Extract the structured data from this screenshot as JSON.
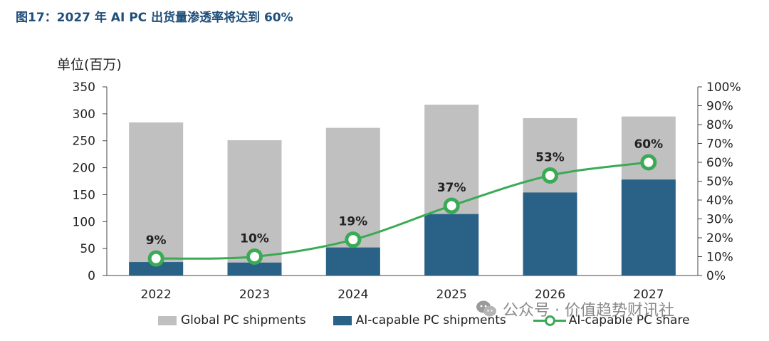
{
  "title": "图17：2027 年 AI PC 出货量渗透率将达到 60%",
  "unit_label": "单位(百万)",
  "watermark": "公众号 · 价值趋势财讯社",
  "colors": {
    "global": "#c0c0c0",
    "ai": "#2a6187",
    "share": "#3aaa55",
    "title": "#1f4e79"
  },
  "chart_data": {
    "type": "bar",
    "categories": [
      "2022",
      "2023",
      "2024",
      "2025",
      "2026",
      "2027"
    ],
    "series": [
      {
        "name": "Global PC shipments",
        "type": "bar",
        "axis": "left",
        "values": [
          284,
          251,
          274,
          317,
          292,
          295
        ]
      },
      {
        "name": "AI-capable PC shipments",
        "type": "bar",
        "axis": "left",
        "values": [
          25,
          24,
          52,
          114,
          154,
          178
        ]
      },
      {
        "name": "AI-capable PC share",
        "type": "line",
        "axis": "right",
        "values": [
          9,
          10,
          19,
          37,
          53,
          60
        ],
        "labels": [
          "9%",
          "10%",
          "19%",
          "37%",
          "53%",
          "60%"
        ]
      }
    ],
    "y_left": {
      "ylim": [
        0,
        350
      ],
      "ticks": [
        0,
        50,
        100,
        150,
        200,
        250,
        300,
        350
      ]
    },
    "y_right": {
      "ylim": [
        0,
        100
      ],
      "ticks": [
        "0%",
        "10%",
        "20%",
        "30%",
        "40%",
        "50%",
        "60%",
        "70%",
        "80%",
        "90%",
        "100%"
      ]
    },
    "legend_position": "bottom",
    "grid": false
  }
}
